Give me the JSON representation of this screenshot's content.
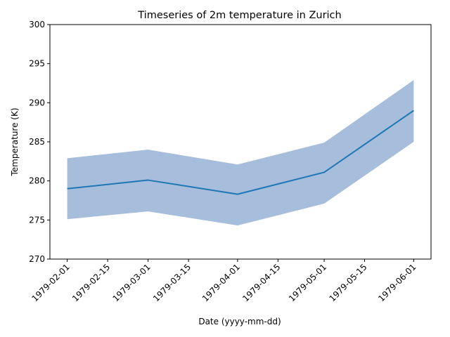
{
  "chart_data": {
    "type": "line",
    "title": "Timeseries of 2m temperature in Zurich",
    "xlabel": "Date (yyyy-mm-dd)",
    "ylabel": "Temperature (K)",
    "x": [
      "1979-02-01",
      "1979-03-01",
      "1979-04-01",
      "1979-05-01",
      "1979-06-01"
    ],
    "series": [
      {
        "values": [
          279.0,
          280.1,
          278.3,
          281.1,
          289.0
        ],
        "band_lower": [
          275.1,
          276.1,
          274.3,
          277.1,
          285.0
        ],
        "band_upper": [
          282.9,
          284.0,
          282.1,
          284.9,
          292.9
        ],
        "color": "#1f77b4",
        "band_color": "#a6bddb"
      }
    ],
    "xlim": [
      "1979-01-26",
      "1979-06-07"
    ],
    "ylim": [
      270,
      300
    ],
    "yticks": [
      270,
      275,
      280,
      285,
      290,
      295,
      300
    ],
    "xticks": [
      "1979-02-01",
      "1979-02-15",
      "1979-03-01",
      "1979-03-15",
      "1979-04-01",
      "1979-04-15",
      "1979-05-01",
      "1979-05-15",
      "1979-06-01"
    ],
    "grid": false,
    "legend": "none"
  }
}
